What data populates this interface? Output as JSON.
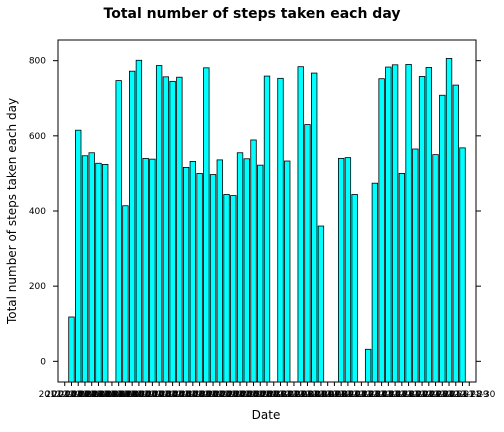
{
  "chart_data": {
    "type": "bar",
    "title": "Total number of steps taken each day",
    "xlabel": "Date",
    "ylabel": "Total number of steps taken each day",
    "ylim": [
      -55,
      855
    ],
    "yticks": [
      0,
      200,
      400,
      600,
      800
    ],
    "grid": false,
    "bar_fill": "#00ffff",
    "bar_stroke": "#000000",
    "x_tick_text_first": "2012-10-01",
    "x_tick_text_last": "2012-11-30",
    "values": [
      0,
      118,
      615,
      547,
      555,
      527,
      524,
      0,
      747,
      414,
      772,
      801,
      540,
      538,
      787,
      757,
      745,
      756,
      516,
      532,
      500,
      781,
      497,
      536,
      444,
      441,
      555,
      539,
      589,
      522,
      759,
      0,
      753,
      533,
      0,
      784,
      630,
      767,
      360,
      0,
      0,
      540,
      542,
      444,
      0,
      32,
      474,
      752,
      783,
      789,
      500,
      790,
      565,
      758,
      782,
      550,
      708,
      806,
      735,
      568,
      0
    ]
  }
}
